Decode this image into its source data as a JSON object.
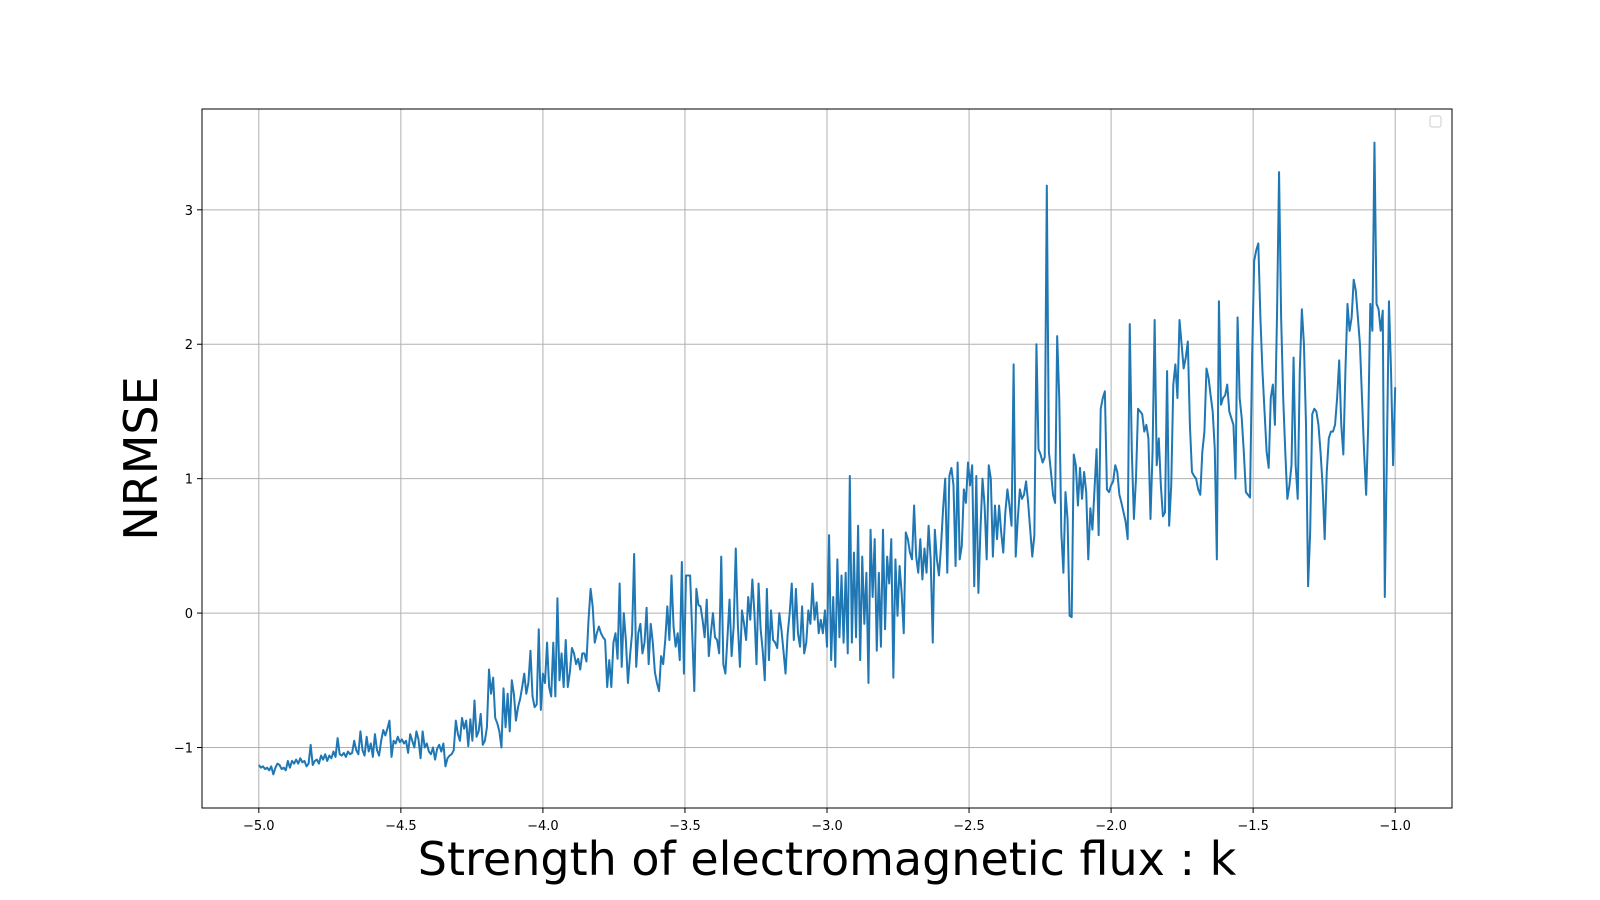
{
  "chart_data": {
    "type": "line",
    "title": "",
    "xlabel": "Strength of electromagnetic flux : k",
    "ylabel": "NRMSE",
    "xlim": [
      -5.2,
      -0.8
    ],
    "ylim": [
      -1.45,
      3.75
    ],
    "xticks": [
      -5.0,
      -4.5,
      -4.0,
      -3.5,
      -3.0,
      -2.5,
      -2.0,
      -1.5,
      -1.0
    ],
    "xtick_labels": [
      "−5.0",
      "−4.5",
      "−4.0",
      "−3.5",
      "−3.0",
      "−2.5",
      "−2.0",
      "−1.5",
      "−1.0"
    ],
    "yticks": [
      -1,
      0,
      1,
      2,
      3
    ],
    "ytick_labels": [
      "−1",
      "0",
      "1",
      "2",
      "3"
    ],
    "grid": true,
    "legend": {
      "location": "top-right",
      "entries": []
    },
    "colors": {
      "line": "#1f77b4",
      "grid": "#b0b0b0",
      "axes": "#000000"
    },
    "series": [
      {
        "x_start": -5.0,
        "x_end": -1.0,
        "step": 0.01,
        "values": [
          -1.13,
          -1.15,
          -1.14,
          -1.16,
          -1.15,
          -1.17,
          -1.14,
          -1.2,
          -1.15,
          -1.12,
          -1.13,
          -1.16,
          -1.15,
          -1.17,
          -1.1,
          -1.15,
          -1.1,
          -1.12,
          -1.09,
          -1.12,
          -1.08,
          -1.11,
          -1.1,
          -1.14,
          -1.12,
          -0.98,
          -1.13,
          -1.1,
          -1.09,
          -1.12,
          -1.06,
          -1.09,
          -1.05,
          -1.1,
          -1.06,
          -1.08,
          -1.03,
          -1.07,
          -0.93,
          -1.05,
          -1.06,
          -1.04,
          -1.07,
          -1.03,
          -1.05,
          -1.04,
          -0.95,
          -1.02,
          -1.05,
          -0.88,
          -1.02,
          -1.06,
          -0.92,
          -1.03,
          -0.97,
          -1.07,
          -0.9,
          -1.02,
          -1.06,
          -0.95,
          -0.87,
          -0.91,
          -0.86,
          -0.8,
          -1.07,
          -0.95,
          -0.97,
          -0.92,
          -0.96,
          -0.94,
          -0.97,
          -0.95,
          -1.04,
          -0.9,
          -0.95,
          -1.0,
          -0.88,
          -0.94,
          -1.08,
          -0.88,
          -1.0,
          -0.97,
          -1.03,
          -1.05,
          -1.0,
          -1.09,
          -1.01,
          -0.98,
          -1.03,
          -0.97,
          -1.14,
          -1.08,
          -1.06,
          -1.05,
          -1.02,
          -0.8,
          -0.9,
          -0.95,
          -0.78,
          -0.86,
          -0.8,
          -0.99,
          -0.79,
          -0.95,
          -0.65,
          -0.92,
          -0.88,
          -0.75,
          -0.98,
          -0.95,
          -0.85,
          -0.42,
          -0.6,
          -0.48,
          -0.78,
          -0.82,
          -0.88,
          -1.0,
          -0.56,
          -0.85,
          -0.6,
          -0.88,
          -0.5,
          -0.6,
          -0.8,
          -0.7,
          -0.64,
          -0.55,
          -0.45,
          -0.6,
          -0.52,
          -0.28,
          -0.62,
          -0.7,
          -0.68,
          -0.12,
          -0.72,
          -0.45,
          -0.52,
          -0.22,
          -0.55,
          -0.62,
          -0.22,
          -0.62,
          0.11,
          -0.5,
          -0.3,
          -0.55,
          -0.2,
          -0.55,
          -0.44,
          -0.26,
          -0.3,
          -0.38,
          -0.34,
          -0.42,
          -0.3,
          -0.3,
          -0.36,
          -0.05,
          0.18,
          0.05,
          -0.22,
          -0.15,
          -0.1,
          -0.15,
          -0.18,
          -0.2,
          -0.55,
          -0.35,
          -0.55,
          -0.22,
          -0.15,
          -0.34,
          0.22,
          -0.4,
          0.0,
          -0.2,
          -0.52,
          -0.32,
          -0.15,
          0.44,
          -0.4,
          -0.15,
          -0.08,
          -0.3,
          -0.22,
          0.04,
          -0.38,
          -0.08,
          -0.22,
          -0.44,
          -0.52,
          -0.58,
          -0.32,
          -0.38,
          -0.2,
          0.05,
          -0.2,
          0.28,
          -0.1,
          -0.25,
          -0.15,
          -0.35,
          0.38,
          -0.45,
          0.28,
          0.28,
          0.28,
          -0.15,
          -0.58,
          0.18,
          0.06,
          0.05,
          -0.05,
          -0.18,
          0.1,
          -0.32,
          -0.15,
          0.0,
          -0.18,
          -0.2,
          -0.3,
          0.42,
          -0.38,
          -0.45,
          -0.18,
          0.1,
          -0.32,
          -0.1,
          0.48,
          -0.08,
          -0.4,
          0.02,
          -0.08,
          -0.2,
          0.12,
          -0.05,
          0.25,
          0.0,
          -0.38,
          0.22,
          -0.12,
          -0.28,
          -0.5,
          0.18,
          -0.35,
          0.02,
          -0.2,
          -0.22,
          -0.26,
          0.0,
          -0.12,
          -0.28,
          -0.45,
          -0.16,
          0.0,
          0.22,
          -0.2,
          0.18,
          -0.15,
          -0.25,
          0.05,
          -0.3,
          -0.22,
          0.02,
          -0.08,
          0.22,
          -0.05,
          0.08,
          -0.15,
          -0.05,
          -0.15,
          0.02,
          -0.25,
          0.58,
          -0.35,
          0.12,
          -0.4,
          0.4,
          -0.18,
          0.28,
          -0.22,
          0.3,
          -0.3,
          1.02,
          -0.22,
          0.45,
          -0.18,
          0.65,
          -0.35,
          0.42,
          -0.08,
          0.3,
          -0.52,
          0.62,
          0.12,
          0.55,
          -0.28,
          0.3,
          -0.25,
          0.62,
          -0.12,
          0.42,
          0.22,
          0.55,
          -0.48,
          0.4,
          -0.02,
          0.35,
          0.15,
          -0.15,
          0.6,
          0.55,
          0.45,
          0.4,
          0.8,
          0.42,
          0.3,
          0.55,
          0.25,
          0.48,
          0.3,
          0.65,
          0.4,
          -0.22,
          0.62,
          0.4,
          0.28,
          0.5,
          0.78,
          1.0,
          0.3,
          1.02,
          1.08,
          0.95,
          0.35,
          1.12,
          0.4,
          0.5,
          0.92,
          0.82,
          1.12,
          0.95,
          1.1,
          0.2,
          1.02,
          0.15,
          0.62,
          1.0,
          0.8,
          0.4,
          1.1,
          1.0,
          0.42,
          0.8,
          0.55,
          0.8,
          0.6,
          0.45,
          0.75,
          0.92,
          0.8,
          0.65,
          1.85,
          0.42,
          0.7,
          0.92,
          0.85,
          0.88,
          0.98,
          0.82,
          0.62,
          0.42,
          0.58,
          2.0,
          1.22,
          1.18,
          1.12,
          1.16,
          3.18,
          1.2,
          1.05,
          0.88,
          0.82,
          2.06,
          1.6,
          0.6,
          0.3,
          0.9,
          0.7,
          -0.02,
          -0.03,
          1.18,
          1.1,
          0.8,
          1.08,
          0.85,
          1.05,
          0.9,
          0.4,
          0.78,
          0.62,
          0.92,
          1.22,
          0.58,
          1.52,
          1.6,
          1.65,
          0.92,
          0.9,
          0.95,
          0.98,
          1.1,
          1.05,
          0.88,
          0.82,
          0.75,
          0.68,
          0.55,
          2.15,
          1.2,
          0.7,
          1.0,
          1.52,
          1.5,
          1.48,
          1.35,
          1.4,
          1.3,
          0.7,
          1.2,
          2.18,
          1.1,
          1.3,
          0.95,
          0.72,
          0.75,
          1.8,
          0.65,
          0.95,
          1.7,
          1.85,
          1.6,
          2.18,
          2.0,
          1.82,
          1.9,
          2.02,
          1.4,
          1.05,
          1.02,
          1.0,
          0.92,
          0.88,
          1.2,
          1.35,
          1.82,
          1.75,
          1.62,
          1.5,
          1.22,
          0.4,
          2.32,
          1.55,
          1.6,
          1.62,
          1.7,
          1.5,
          1.45,
          1.4,
          1.0,
          2.2,
          1.6,
          1.45,
          1.2,
          0.9,
          0.88,
          0.86,
          1.9,
          2.62,
          2.7,
          2.75,
          2.2,
          1.8,
          1.5,
          1.2,
          1.08,
          1.6,
          1.7,
          1.4,
          2.2,
          3.28,
          2.2,
          1.6,
          1.2,
          0.85,
          0.95,
          1.1,
          1.9,
          1.1,
          0.85,
          1.8,
          2.26,
          2.0,
          1.4,
          0.2,
          0.6,
          1.48,
          1.52,
          1.5,
          1.4,
          1.2,
          0.95,
          0.55,
          1.05,
          1.3,
          1.35,
          1.35,
          1.4,
          1.6,
          1.88,
          1.4,
          1.18,
          1.8,
          2.3,
          2.1,
          2.2,
          2.48,
          2.4,
          2.2,
          2.0,
          1.6,
          1.2,
          0.88,
          1.4,
          2.3,
          2.1,
          3.5,
          2.3,
          2.26,
          2.1,
          2.25,
          0.12,
          1.2,
          2.32,
          1.8,
          1.1,
          1.68
        ]
      }
    ]
  }
}
